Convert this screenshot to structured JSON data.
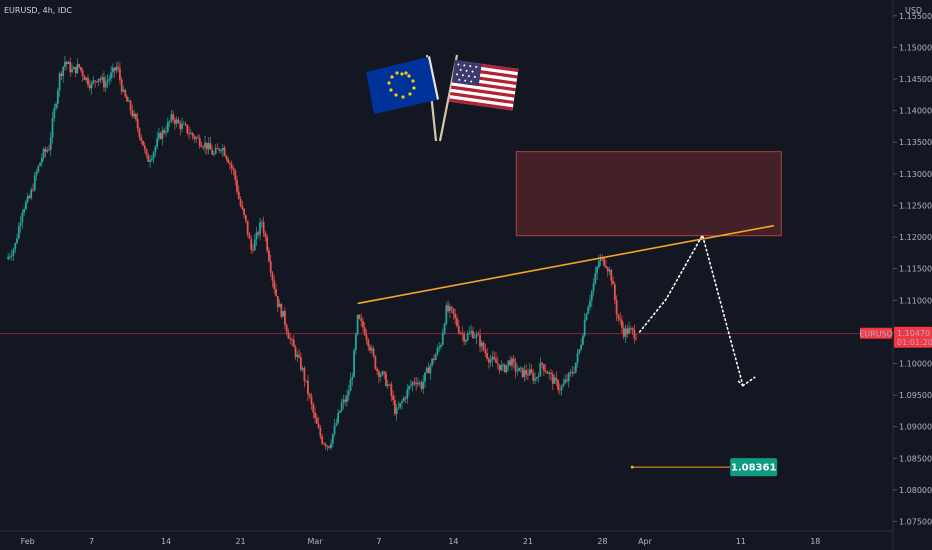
{
  "header": {
    "symbol": "EURUSD, 4h, IDC"
  },
  "axis": {
    "currency": "USD"
  },
  "chart_data": {
    "type": "candlestick",
    "ylim": [
      1.0735,
      1.1575
    ],
    "y_ticks": [
      1.155,
      1.15,
      1.145,
      1.14,
      1.135,
      1.13,
      1.125,
      1.12,
      1.115,
      1.11,
      1.105,
      1.1,
      1.095,
      1.09,
      1.085,
      1.08,
      1.075
    ],
    "y_tick_labels": [
      "1.15500",
      "1.15000",
      "1.14500",
      "1.14000",
      "1.13500",
      "1.13000",
      "1.12500",
      "1.12000",
      "1.11500",
      "1.11000",
      "1.10500",
      "1.10000",
      "1.09500",
      "1.09000",
      "1.08500",
      "1.08000",
      "1.07500"
    ],
    "x_ticks": [
      {
        "label": "Feb",
        "t": 0
      },
      {
        "label": "7",
        "t": 6
      },
      {
        "label": "14",
        "t": 13
      },
      {
        "label": "21",
        "t": 20
      },
      {
        "label": "Mar",
        "t": 27
      },
      {
        "label": "7",
        "t": 33
      },
      {
        "label": "14",
        "t": 40
      },
      {
        "label": "21",
        "t": 47
      },
      {
        "label": "28",
        "t": 54
      },
      {
        "label": "Apr",
        "t": 58
      },
      {
        "label": "11",
        "t": 67
      },
      {
        "label": "18",
        "t": 74
      }
    ],
    "x_domain": [
      -2.6,
      81.3
    ],
    "close_path": [
      [
        -2.0,
        1.1165
      ],
      [
        -1.2,
        1.1185
      ],
      [
        -0.5,
        1.1245
      ],
      [
        0.2,
        1.1262
      ],
      [
        0.8,
        1.13
      ],
      [
        1.4,
        1.133
      ],
      [
        2.0,
        1.1342
      ],
      [
        2.5,
        1.14
      ],
      [
        3.0,
        1.1455
      ],
      [
        3.5,
        1.1478
      ],
      [
        4.2,
        1.1462
      ],
      [
        4.8,
        1.147
      ],
      [
        5.4,
        1.1452
      ],
      [
        6.0,
        1.144
      ],
      [
        6.6,
        1.1455
      ],
      [
        7.2,
        1.1442
      ],
      [
        7.8,
        1.1455
      ],
      [
        8.4,
        1.147
      ],
      [
        9.0,
        1.1425
      ],
      [
        9.6,
        1.1405
      ],
      [
        10.2,
        1.138
      ],
      [
        10.8,
        1.135
      ],
      [
        11.2,
        1.132
      ],
      [
        11.8,
        1.1335
      ],
      [
        12.4,
        1.136
      ],
      [
        13.0,
        1.1372
      ],
      [
        13.6,
        1.139
      ],
      [
        14.2,
        1.1378
      ],
      [
        14.8,
        1.1372
      ],
      [
        15.5,
        1.136
      ],
      [
        16.2,
        1.1352
      ],
      [
        16.8,
        1.1345
      ],
      [
        17.5,
        1.133
      ],
      [
        18.2,
        1.1345
      ],
      [
        18.8,
        1.1325
      ],
      [
        19.4,
        1.13
      ],
      [
        19.9,
        1.1255
      ],
      [
        20.5,
        1.1222
      ],
      [
        21.0,
        1.118
      ],
      [
        21.5,
        1.12
      ],
      [
        22.0,
        1.1225
      ],
      [
        22.5,
        1.1185
      ],
      [
        23.0,
        1.1135
      ],
      [
        23.5,
        1.1095
      ],
      [
        24.0,
        1.1075
      ],
      [
        24.6,
        1.104
      ],
      [
        25.2,
        1.1015
      ],
      [
        25.8,
        1.099
      ],
      [
        26.4,
        1.095
      ],
      [
        27.0,
        1.091
      ],
      [
        27.6,
        1.088
      ],
      [
        28.3,
        1.087
      ],
      [
        28.9,
        1.09
      ],
      [
        29.5,
        1.0935
      ],
      [
        30.0,
        1.0945
      ],
      [
        30.5,
        1.0985
      ],
      [
        31.0,
        1.107
      ],
      [
        31.6,
        1.1055
      ],
      [
        32.2,
        1.1025
      ],
      [
        32.8,
        1.099
      ],
      [
        33.4,
        1.098
      ],
      [
        34.0,
        1.096
      ],
      [
        34.6,
        1.092
      ],
      [
        35.2,
        1.094
      ],
      [
        35.8,
        1.096
      ],
      [
        36.4,
        1.0975
      ],
      [
        37.0,
        1.0965
      ],
      [
        37.6,
        1.099
      ],
      [
        38.2,
        1.101
      ],
      [
        38.8,
        1.103
      ],
      [
        39.3,
        1.1085
      ],
      [
        39.9,
        1.108
      ],
      [
        40.5,
        1.1055
      ],
      [
        41.1,
        1.104
      ],
      [
        41.7,
        1.105
      ],
      [
        42.3,
        1.104
      ],
      [
        42.9,
        1.102
      ],
      [
        43.5,
        1.1005
      ],
      [
        44.1,
        1.1
      ],
      [
        44.7,
        1.099
      ],
      [
        45.3,
        1.1005
      ],
      [
        45.9,
        1.099
      ],
      [
        46.5,
        1.0985
      ],
      [
        47.1,
        1.0985
      ],
      [
        47.7,
        1.0975
      ],
      [
        48.3,
        1.1
      ],
      [
        48.9,
        1.0985
      ],
      [
        49.5,
        1.097
      ],
      [
        50.1,
        1.096
      ],
      [
        50.7,
        1.0975
      ],
      [
        51.3,
        1.099
      ],
      [
        51.9,
        1.1025
      ],
      [
        52.5,
        1.1085
      ],
      [
        53.1,
        1.112
      ],
      [
        53.7,
        1.1165
      ],
      [
        54.3,
        1.116
      ],
      [
        54.8,
        1.114
      ],
      [
        55.4,
        1.1075
      ],
      [
        56.0,
        1.105
      ],
      [
        56.6,
        1.1052
      ],
      [
        57.2,
        1.1045
      ]
    ],
    "current_price": {
      "value": 1.1047,
      "label": "1.10470",
      "countdown": "01:01:20",
      "symbol": "EURUSD"
    },
    "annotations": {
      "resistance_zone": {
        "t_start": 45.9,
        "t_end": 70.8,
        "y_low": 1.1202,
        "y_high": 1.1335
      },
      "trendline": {
        "points": [
          [
            31.0,
            1.1095
          ],
          [
            70.1,
            1.1218
          ]
        ]
      },
      "projection_path": [
        [
          57.5,
          1.105
        ],
        [
          60.0,
          1.1102
        ],
        [
          63.4,
          1.1203
        ],
        [
          67.2,
          1.0965
        ],
        [
          68.3,
          1.0978
        ]
      ],
      "target": {
        "t_start": 56.8,
        "t_end": 66.0,
        "value": 1.08361,
        "label": "1.08361"
      }
    }
  },
  "colors": {
    "up": "#26a69a",
    "down": "#ef5350",
    "trendline": "#f5a623",
    "zone_fill": "#4d2329",
    "zone_border": "#d14b4b",
    "target_badge": "#0f9b82",
    "price_badge": "#f23645"
  }
}
